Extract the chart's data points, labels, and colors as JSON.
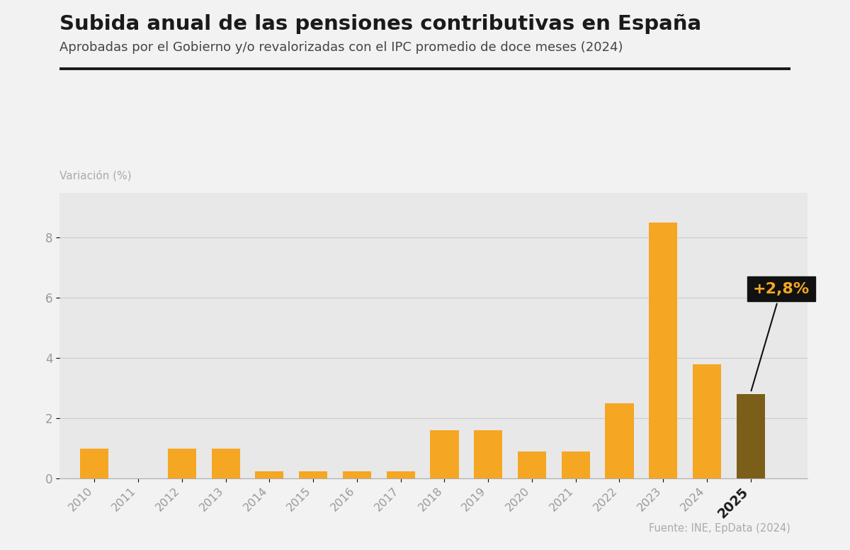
{
  "title": "Subida anual de las pensiones contributivas en España",
  "subtitle": "Aprobadas por el Gobierno y/o revalorizadas con el IPC promedio de doce meses (2024)",
  "ylabel": "Variación (%)",
  "source": "Fuente: INE, EpData (2024)",
  "years": [
    2010,
    2011,
    2012,
    2013,
    2014,
    2015,
    2016,
    2017,
    2018,
    2019,
    2020,
    2021,
    2022,
    2023,
    2024,
    2025
  ],
  "values": [
    1.0,
    0.0,
    1.0,
    1.0,
    0.25,
    0.25,
    0.25,
    0.25,
    1.6,
    1.6,
    0.9,
    0.9,
    2.5,
    8.5,
    3.8,
    2.8
  ],
  "bar_colors": [
    "#F5A623",
    "#F5A623",
    "#F5A623",
    "#F5A623",
    "#F5A623",
    "#F5A623",
    "#F5A623",
    "#F5A623",
    "#F5A623",
    "#F5A623",
    "#F5A623",
    "#F5A623",
    "#F5A623",
    "#F5A623",
    "#F5A623",
    "#7B5E1A"
  ],
  "annotation_text": "+2,8%",
  "annotation_year": 2025,
  "annotation_value": 2.8,
  "annotation_box_color": "#111111",
  "annotation_text_color": "#F5A623",
  "ylim_max": 9.5,
  "ylim_min": 0,
  "yticks": [
    0,
    2,
    4,
    6,
    8
  ],
  "bg_plot_color": "#E8E8E8",
  "bg_figure_color": "#F2F2F2",
  "title_fontsize": 21,
  "subtitle_fontsize": 13,
  "tick_label_color": "#999999",
  "grid_color": "#CCCCCC"
}
